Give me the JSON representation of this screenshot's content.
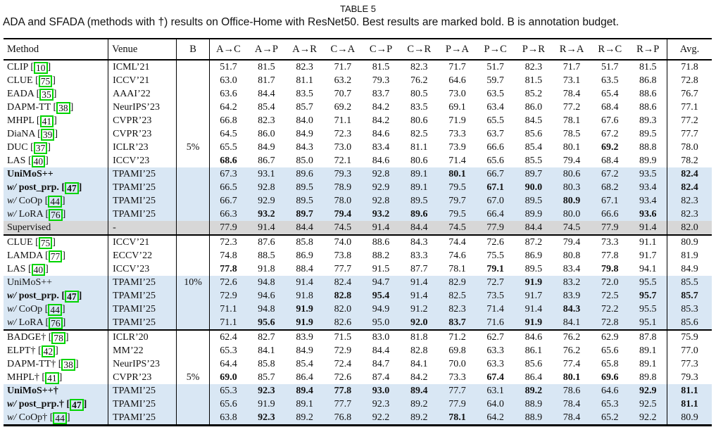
{
  "title": "TABLE 5",
  "caption": "ADA and SFADA (methods with †) results on Office-Home with ResNet50. Best results are marked bold. B is annotation budget.",
  "colors": {
    "highlight_blue": "#d9e7f4",
    "highlight_gray": "#d7d7d7",
    "citation_green": "#00d400"
  },
  "table": {
    "columns": [
      "Method",
      "Venue",
      "B",
      "A→C",
      "A→P",
      "A→R",
      "C→A",
      "C→P",
      "C→R",
      "P→A",
      "P→C",
      "P→R",
      "R→A",
      "R→C",
      "R→P",
      "Avg."
    ],
    "rows": [
      {
        "prefix": "",
        "label": "CLIP",
        "cite": "10",
        "bold_label": false,
        "venue": "ICML’21",
        "b": "",
        "vals": [
          "51.7",
          "81.5",
          "82.3",
          "71.7",
          "81.5",
          "82.3",
          "71.7",
          "51.7",
          "82.3",
          "71.7",
          "51.7",
          "81.5",
          "71.8"
        ],
        "bold": [],
        "bg": "",
        "sep": false
      },
      {
        "prefix": "",
        "label": "CLUE",
        "cite": "75",
        "bold_label": false,
        "venue": "ICCV’21",
        "b": "",
        "vals": [
          "63.0",
          "81.7",
          "81.1",
          "63.2",
          "79.3",
          "76.2",
          "64.6",
          "59.7",
          "81.5",
          "73.1",
          "63.5",
          "86.8",
          "72.8"
        ],
        "bold": [],
        "bg": "",
        "sep": false
      },
      {
        "prefix": "",
        "label": "EADA",
        "cite": "35",
        "bold_label": false,
        "venue": "AAAI’22",
        "b": "",
        "vals": [
          "63.6",
          "84.4",
          "83.5",
          "70.7",
          "83.7",
          "80.5",
          "73.0",
          "63.5",
          "85.2",
          "78.4",
          "65.4",
          "88.6",
          "76.7"
        ],
        "bold": [],
        "bg": "",
        "sep": false
      },
      {
        "prefix": "",
        "label": "DAPM-TT",
        "cite": "38",
        "bold_label": false,
        "venue": "NeurIPS’23",
        "b": "",
        "vals": [
          "64.2",
          "85.4",
          "85.7",
          "69.2",
          "84.2",
          "83.5",
          "69.1",
          "63.4",
          "86.0",
          "77.2",
          "68.4",
          "88.6",
          "77.1"
        ],
        "bold": [],
        "bg": "",
        "sep": false
      },
      {
        "prefix": "",
        "label": "MHPL",
        "cite": "41",
        "bold_label": false,
        "venue": "CVPR’23",
        "b": "",
        "vals": [
          "66.8",
          "82.3",
          "84.0",
          "71.1",
          "84.2",
          "80.6",
          "71.9",
          "65.5",
          "84.5",
          "78.1",
          "67.6",
          "89.3",
          "77.2"
        ],
        "bold": [],
        "bg": "",
        "sep": false
      },
      {
        "prefix": "",
        "label": "DiaNA",
        "cite": "39",
        "bold_label": false,
        "venue": "CVPR’23",
        "b": "",
        "vals": [
          "64.5",
          "86.0",
          "84.9",
          "72.3",
          "84.6",
          "82.5",
          "73.3",
          "63.7",
          "85.6",
          "78.5",
          "67.2",
          "89.5",
          "77.7"
        ],
        "bold": [],
        "bg": "",
        "sep": false
      },
      {
        "prefix": "",
        "label": "DUC",
        "cite": "37",
        "bold_label": false,
        "venue": "ICLR’23",
        "b": "5%",
        "vals": [
          "65.5",
          "84.9",
          "84.3",
          "73.0",
          "83.4",
          "81.1",
          "73.9",
          "66.6",
          "85.4",
          "80.1",
          "69.2",
          "88.8",
          "78.0"
        ],
        "bold": [
          10
        ],
        "bg": "",
        "sep": false
      },
      {
        "prefix": "",
        "label": "LAS",
        "cite": "40",
        "bold_label": false,
        "venue": "ICCV’23",
        "b": "",
        "vals": [
          "68.6",
          "86.7",
          "85.0",
          "72.1",
          "84.6",
          "80.6",
          "71.4",
          "65.6",
          "85.5",
          "79.4",
          "68.4",
          "89.9",
          "78.2"
        ],
        "bold": [
          0
        ],
        "bg": "",
        "sep": false
      },
      {
        "prefix": "",
        "label": "UniMoS++",
        "cite": "",
        "bold_label": true,
        "venue": "TPAMI’25",
        "b": "",
        "vals": [
          "67.3",
          "93.1",
          "89.6",
          "79.3",
          "92.8",
          "89.1",
          "80.1",
          "66.7",
          "89.7",
          "80.6",
          "67.2",
          "93.5",
          "82.4"
        ],
        "bold": [
          6,
          12
        ],
        "bg": "blue",
        "sep": false
      },
      {
        "prefix": "w/",
        "label": "post_prp.",
        "cite": "47",
        "bold_label": true,
        "venue": "TPAMI’25",
        "b": "",
        "vals": [
          "66.5",
          "92.8",
          "89.5",
          "78.9",
          "92.9",
          "89.1",
          "79.5",
          "67.1",
          "90.0",
          "80.3",
          "68.2",
          "93.4",
          "82.4"
        ],
        "bold": [
          7,
          8,
          12
        ],
        "bg": "blue",
        "sep": false
      },
      {
        "prefix": "w/",
        "label": "CoOp",
        "cite": "44",
        "bold_label": false,
        "venue": "TPAMI’25",
        "b": "",
        "vals": [
          "66.7",
          "92.9",
          "89.5",
          "78.0",
          "92.8",
          "89.5",
          "79.7",
          "67.0",
          "89.5",
          "80.9",
          "67.1",
          "93.4",
          "82.3"
        ],
        "bold": [
          9
        ],
        "bg": "blue",
        "sep": false
      },
      {
        "prefix": "w/",
        "label": "LoRA",
        "cite": "76",
        "bold_label": false,
        "venue": "TPAMI’25",
        "b": "",
        "vals": [
          "66.3",
          "93.2",
          "89.7",
          "79.4",
          "93.2",
          "89.6",
          "79.5",
          "66.4",
          "89.9",
          "80.0",
          "66.6",
          "93.6",
          "82.3"
        ],
        "bold": [
          1,
          2,
          3,
          4,
          5,
          11
        ],
        "bg": "blue",
        "sep": false
      },
      {
        "prefix": "",
        "label": "Supervised",
        "cite": "",
        "bold_label": false,
        "venue": "-",
        "b": "",
        "vals": [
          "77.9",
          "91.4",
          "84.4",
          "74.5",
          "91.4",
          "84.4",
          "74.5",
          "77.9",
          "84.4",
          "74.5",
          "77.9",
          "91.4",
          "82.0"
        ],
        "bold": [],
        "bg": "gray",
        "sep": false
      },
      {
        "prefix": "",
        "label": "CLUE",
        "cite": "75",
        "bold_label": false,
        "venue": "ICCV’21",
        "b": "",
        "vals": [
          "72.3",
          "87.6",
          "85.8",
          "74.0",
          "88.6",
          "84.3",
          "74.4",
          "72.6",
          "87.2",
          "79.4",
          "73.3",
          "91.1",
          "80.9"
        ],
        "bold": [],
        "bg": "",
        "sep": true
      },
      {
        "prefix": "",
        "label": "LAMDA",
        "cite": "77",
        "bold_label": false,
        "venue": "ECCV’22",
        "b": "",
        "vals": [
          "74.8",
          "88.5",
          "86.9",
          "73.8",
          "88.2",
          "83.3",
          "74.6",
          "75.5",
          "86.9",
          "80.8",
          "77.8",
          "91.7",
          "81.9"
        ],
        "bold": [],
        "bg": "",
        "sep": false
      },
      {
        "prefix": "",
        "label": "LAS",
        "cite": "40",
        "bold_label": false,
        "venue": "ICCV’23",
        "b": "",
        "vals": [
          "77.8",
          "91.8",
          "88.4",
          "77.7",
          "91.5",
          "87.7",
          "78.1",
          "79.1",
          "89.5",
          "83.4",
          "79.8",
          "94.1",
          "84.9"
        ],
        "bold": [
          0,
          7,
          10
        ],
        "bg": "",
        "sep": false
      },
      {
        "prefix": "",
        "label": "UniMoS++",
        "cite": "",
        "bold_label": false,
        "venue": "TPAMI’25",
        "b": "10%",
        "vals": [
          "72.6",
          "94.8",
          "91.4",
          "82.4",
          "94.7",
          "91.4",
          "82.9",
          "72.7",
          "91.9",
          "83.2",
          "72.0",
          "95.5",
          "85.5"
        ],
        "bold": [
          8
        ],
        "bg": "blue",
        "sep": false
      },
      {
        "prefix": "w/",
        "label": "post_prp.",
        "cite": "47",
        "bold_label": true,
        "venue": "TPAMI’25",
        "b": "",
        "vals": [
          "72.9",
          "94.6",
          "91.8",
          "82.8",
          "95.4",
          "91.4",
          "82.5",
          "73.5",
          "91.7",
          "83.9",
          "72.5",
          "95.7",
          "85.7"
        ],
        "bold": [
          3,
          4,
          11,
          12
        ],
        "bg": "blue",
        "sep": false
      },
      {
        "prefix": "w/",
        "label": "CoOp",
        "cite": "44",
        "bold_label": false,
        "venue": "TPAMI’25",
        "b": "",
        "vals": [
          "71.1",
          "94.8",
          "91.9",
          "82.0",
          "94.9",
          "91.2",
          "82.3",
          "71.4",
          "91.4",
          "84.3",
          "72.2",
          "95.5",
          "85.3"
        ],
        "bold": [
          2,
          9
        ],
        "bg": "blue",
        "sep": false
      },
      {
        "prefix": "w/",
        "label": "LoRA",
        "cite": "76",
        "bold_label": false,
        "venue": "TPAMI’25",
        "b": "",
        "vals": [
          "71.1",
          "95.6",
          "91.9",
          "82.6",
          "95.0",
          "92.0",
          "83.7",
          "71.6",
          "91.9",
          "84.1",
          "72.8",
          "95.1",
          "85.6"
        ],
        "bold": [
          1,
          2,
          5,
          6,
          8
        ],
        "bg": "blue",
        "sep": false
      },
      {
        "prefix": "",
        "label": "BADGE†",
        "cite": "78",
        "bold_label": false,
        "venue": "ICLR’20",
        "b": "",
        "vals": [
          "62.4",
          "82.7",
          "83.9",
          "71.5",
          "83.0",
          "81.8",
          "71.2",
          "62.7",
          "84.6",
          "76.2",
          "62.9",
          "87.8",
          "75.9"
        ],
        "bold": [],
        "bg": "",
        "sep": true
      },
      {
        "prefix": "",
        "label": "ELPT†",
        "cite": "42",
        "bold_label": false,
        "venue": "MM’22",
        "b": "",
        "vals": [
          "65.3",
          "84.1",
          "84.9",
          "72.9",
          "84.4",
          "82.8",
          "69.8",
          "63.3",
          "86.1",
          "76.2",
          "65.6",
          "89.1",
          "77.0"
        ],
        "bold": [],
        "bg": "",
        "sep": false
      },
      {
        "prefix": "",
        "label": "DAPM-TT†",
        "cite": "38",
        "bold_label": false,
        "venue": "NeurIPS’23",
        "b": "",
        "vals": [
          "64.4",
          "85.8",
          "85.4",
          "72.4",
          "84.7",
          "84.1",
          "70.0",
          "63.3",
          "85.6",
          "77.4",
          "65.8",
          "89.1",
          "77.3"
        ],
        "bold": [],
        "bg": "",
        "sep": false
      },
      {
        "prefix": "",
        "label": "MHPL†",
        "cite": "41",
        "bold_label": false,
        "venue": "CVPR’23",
        "b": "5%",
        "vals": [
          "69.0",
          "85.7",
          "86.4",
          "72.6",
          "87.4",
          "84.2",
          "73.3",
          "67.4",
          "86.4",
          "80.1",
          "69.6",
          "89.8",
          "79.3"
        ],
        "bold": [
          0,
          7,
          9,
          10
        ],
        "bg": "",
        "sep": false
      },
      {
        "prefix": "",
        "label": "UniMoS++†",
        "cite": "",
        "bold_label": true,
        "venue": "TPAMI’25",
        "b": "",
        "vals": [
          "65.3",
          "92.3",
          "89.4",
          "77.8",
          "93.0",
          "89.4",
          "77.7",
          "63.1",
          "89.2",
          "78.6",
          "64.6",
          "92.9",
          "81.1"
        ],
        "bold": [
          1,
          2,
          3,
          4,
          5,
          8,
          11,
          12
        ],
        "bg": "blue",
        "sep": false
      },
      {
        "prefix": "w/",
        "label": "post_prp.†",
        "cite": "47",
        "bold_label": true,
        "venue": "TPAMI’25",
        "b": "",
        "vals": [
          "65.6",
          "91.9",
          "89.1",
          "77.7",
          "92.3",
          "89.2",
          "77.9",
          "64.0",
          "88.9",
          "78.4",
          "65.3",
          "92.5",
          "81.1"
        ],
        "bold": [
          12
        ],
        "bg": "blue",
        "sep": false
      },
      {
        "prefix": "w/",
        "label": "CoOp†",
        "cite": "44",
        "bold_label": false,
        "venue": "TPAMI’25",
        "b": "",
        "vals": [
          "63.8",
          "92.3",
          "89.2",
          "76.8",
          "92.2",
          "89.2",
          "78.1",
          "64.2",
          "88.9",
          "78.4",
          "65.2",
          "92.2",
          "80.9"
        ],
        "bold": [
          1,
          6
        ],
        "bg": "blue",
        "sep": false
      }
    ]
  }
}
